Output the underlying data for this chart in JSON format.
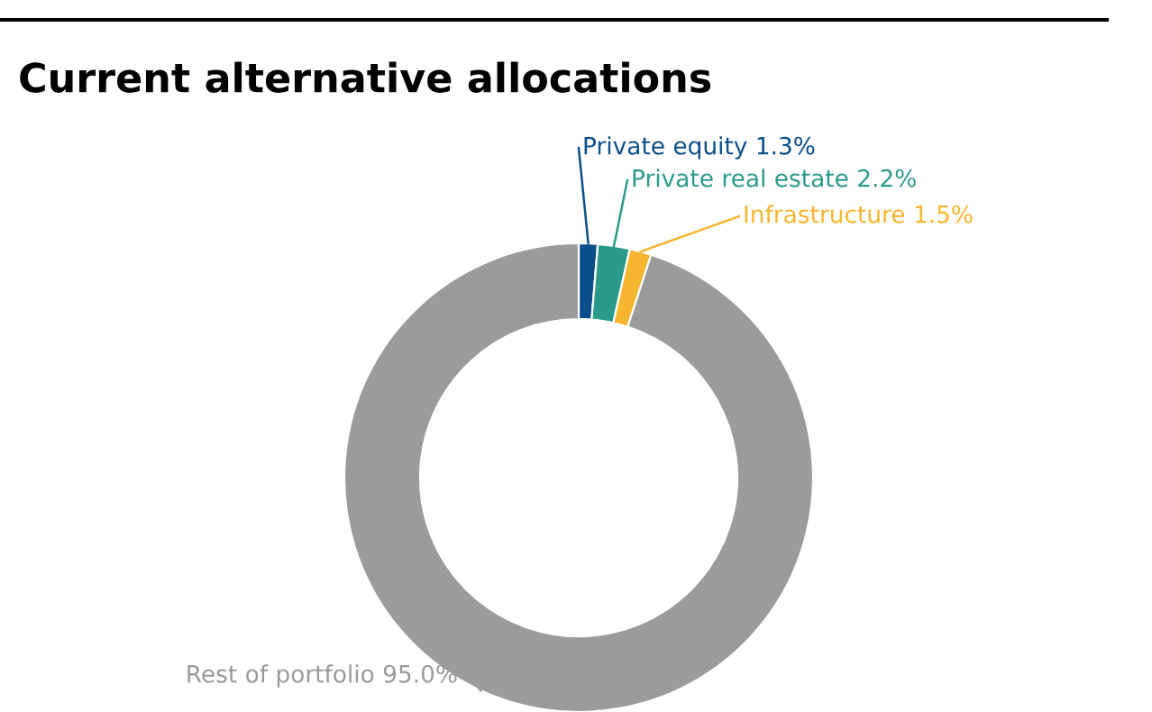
{
  "chart_data": {
    "type": "donut",
    "title": "Current alternative allocations",
    "categories": [
      "Private equity",
      "Private real estate",
      "Infrastructure",
      "Rest of portfolio"
    ],
    "values": [
      1.3,
      2.2,
      1.5,
      95.0
    ],
    "value_labels": [
      "1.3%",
      "2.2%",
      "1.5%",
      "95.0%"
    ],
    "colors": [
      "#0b4f8a",
      "#2a9a8a",
      "#f5b52e",
      "#9b9b9b"
    ]
  }
}
